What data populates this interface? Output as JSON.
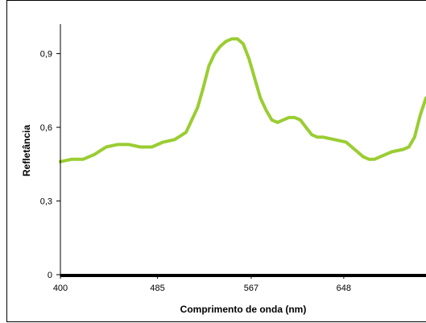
{
  "chart_data": {
    "type": "line",
    "title": "",
    "xlabel": "Comprimento de onda (nm)",
    "ylabel": "Refletância",
    "x_ticks": [
      400,
      485,
      567,
      648
    ],
    "x_tick_labels": [
      "400",
      "485",
      "567",
      "648"
    ],
    "y_ticks": [
      0,
      0.3,
      0.6,
      0.9
    ],
    "y_tick_labels": [
      "0",
      "0,3",
      "0,6",
      "0,9"
    ],
    "xlim": [
      400,
      720
    ],
    "ylim": [
      0,
      1.02
    ],
    "grid": false,
    "legend": "none",
    "series": [
      {
        "color": "#9acd32",
        "x": [
          400,
          410,
          420,
          430,
          440,
          450,
          460,
          470,
          480,
          490,
          500,
          510,
          515,
          520,
          525,
          530,
          535,
          540,
          545,
          550,
          555,
          560,
          565,
          570,
          575,
          580,
          585,
          590,
          595,
          600,
          605,
          610,
          615,
          620,
          625,
          630,
          640,
          650,
          660,
          665,
          670,
          675,
          680,
          690,
          700,
          705,
          710,
          715,
          720
        ],
        "y": [
          0.46,
          0.47,
          0.47,
          0.49,
          0.52,
          0.53,
          0.53,
          0.52,
          0.52,
          0.54,
          0.55,
          0.58,
          0.63,
          0.68,
          0.76,
          0.85,
          0.9,
          0.93,
          0.95,
          0.96,
          0.96,
          0.94,
          0.88,
          0.8,
          0.72,
          0.67,
          0.63,
          0.62,
          0.63,
          0.64,
          0.64,
          0.63,
          0.6,
          0.57,
          0.56,
          0.56,
          0.55,
          0.54,
          0.5,
          0.48,
          0.47,
          0.47,
          0.48,
          0.5,
          0.51,
          0.52,
          0.56,
          0.65,
          0.72
        ]
      }
    ]
  }
}
